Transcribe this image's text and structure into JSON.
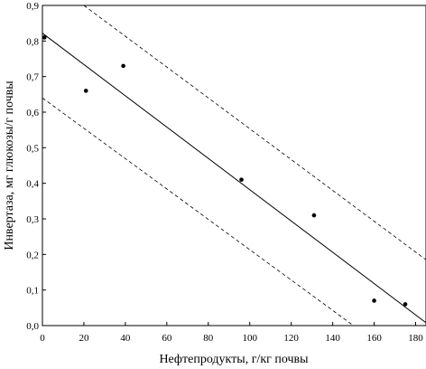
{
  "chart_data": {
    "type": "scatter",
    "title": "",
    "xlabel": "Нефтепродукты, г/кг почвы",
    "ylabel": "Инвертаза, мг глюкозы/г почвы",
    "xlim": [
      0,
      185
    ],
    "ylim": [
      0.0,
      0.9
    ],
    "x_ticks": [
      0,
      20,
      40,
      60,
      80,
      100,
      120,
      140,
      160,
      180
    ],
    "x_tick_labels": [
      "0",
      "20",
      "40",
      "60",
      "80",
      "100",
      "120",
      "140",
      "160",
      "180"
    ],
    "y_ticks": [
      0.0,
      0.1,
      0.2,
      0.3,
      0.4,
      0.5,
      0.6,
      0.7,
      0.8,
      0.9
    ],
    "y_tick_labels": [
      "0,0",
      "0,1",
      "0,2",
      "0,3",
      "0,4",
      "0,5",
      "0,6",
      "0,7",
      "0,8",
      "0,9"
    ],
    "grid": false,
    "points": [
      {
        "x": 1,
        "y": 0.81
      },
      {
        "x": 21,
        "y": 0.66
      },
      {
        "x": 39,
        "y": 0.73
      },
      {
        "x": 96,
        "y": 0.41
      },
      {
        "x": 131,
        "y": 0.31
      },
      {
        "x": 160,
        "y": 0.07
      },
      {
        "x": 175,
        "y": 0.06
      }
    ],
    "regression_line": {
      "x": [
        0,
        185
      ],
      "y": [
        0.822,
        0.008
      ],
      "style": "solid"
    },
    "confidence_bands": [
      {
        "x": [
          20,
          185
        ],
        "y": [
          0.9,
          0.185
        ],
        "style": "dashed"
      },
      {
        "x": [
          0,
          150
        ],
        "y": [
          0.64,
          0.0
        ],
        "style": "dashed"
      }
    ]
  }
}
